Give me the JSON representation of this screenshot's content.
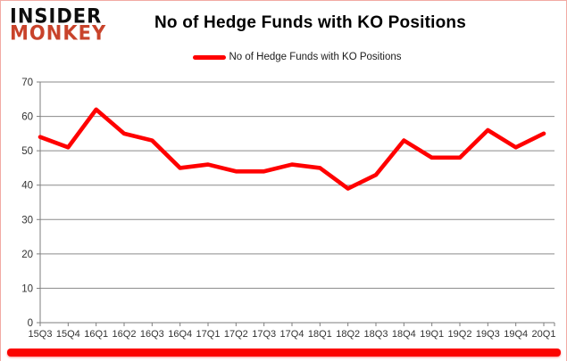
{
  "logo": {
    "line1": "INSIDER",
    "line2": "MONKEY"
  },
  "title": "No of Hedge Funds with KO Positions",
  "legend": {
    "label": "No of Hedge Funds with KO Positions"
  },
  "colors": {
    "series_red": "#ff0000",
    "logo_black": "#0d0d0d",
    "logo_red": "#c8432b",
    "gridline": "#8a8a8a",
    "axis": "#7d7d7d",
    "tick_label": "#333333",
    "frame_border": "#f2aaa4",
    "bottom_bar": "#fb0400"
  },
  "chart_data": {
    "type": "line",
    "title": "No of Hedge Funds with KO Positions",
    "categories": [
      "15Q3",
      "15Q4",
      "16Q1",
      "16Q2",
      "16Q3",
      "16Q4",
      "17Q1",
      "17Q2",
      "17Q3",
      "17Q4",
      "18Q1",
      "18Q2",
      "18Q3",
      "18Q4",
      "19Q1",
      "19Q2",
      "19Q3",
      "19Q4",
      "20Q1"
    ],
    "series": [
      {
        "name": "No of Hedge Funds with KO Positions",
        "color": "#ff0000",
        "values": [
          54,
          51,
          62,
          55,
          53,
          45,
          46,
          44,
          44,
          46,
          45,
          39,
          43,
          53,
          48,
          48,
          56,
          51,
          55
        ]
      }
    ],
    "xlabel": "",
    "ylabel": "",
    "ylim": [
      0,
      70
    ],
    "yticks": [
      0,
      10,
      20,
      30,
      40,
      50,
      60,
      70
    ],
    "grid": "horizontal",
    "legend_position": "top-center"
  }
}
